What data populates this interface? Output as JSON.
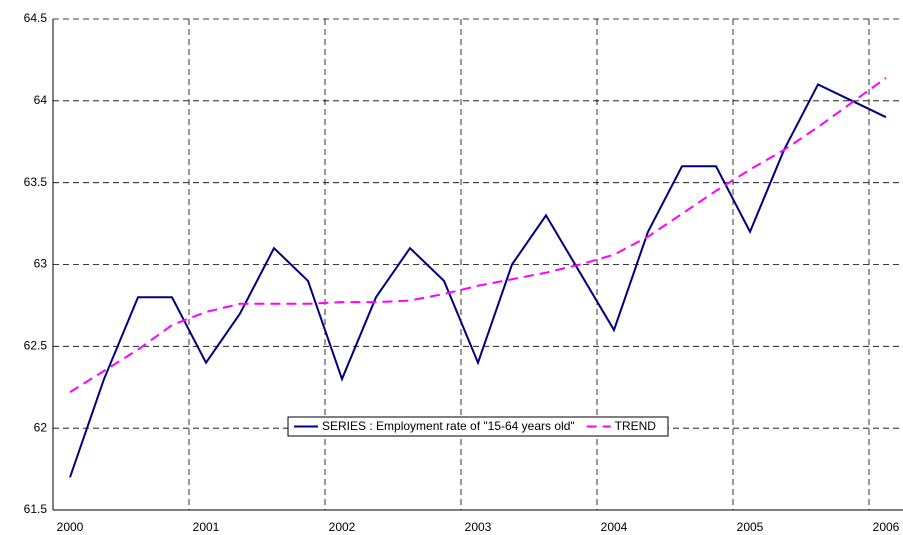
{
  "chart_data": {
    "type": "line",
    "categories": [
      "2000",
      null,
      null,
      null,
      "2001",
      null,
      null,
      null,
      "2002",
      null,
      null,
      null,
      "2003",
      null,
      null,
      null,
      "2004",
      null,
      null,
      null,
      "2005",
      null,
      null,
      null,
      "2006"
    ],
    "series": [
      {
        "name": "SERIES : Employment rate of \"15-64 years old\"",
        "color": "#000080",
        "dash": "solid",
        "values": [
          61.7,
          62.3,
          62.8,
          62.8,
          62.4,
          62.7,
          63.1,
          62.9,
          62.3,
          62.8,
          63.1,
          62.9,
          62.4,
          63.0,
          63.3,
          62.95,
          62.6,
          63.2,
          63.6,
          63.6,
          63.2,
          63.7,
          64.1,
          64.0,
          63.9
        ]
      },
      {
        "name": "TREND",
        "color": "#ff00ff",
        "dash": "dashed",
        "values": [
          62.22,
          62.35,
          62.48,
          62.63,
          62.71,
          62.76,
          62.76,
          62.76,
          62.77,
          62.77,
          62.78,
          62.82,
          62.87,
          62.91,
          62.95,
          63.0,
          63.06,
          63.17,
          63.31,
          63.45,
          63.58,
          63.7,
          63.84,
          63.99,
          64.14
        ]
      }
    ],
    "ylim": [
      61.5,
      64.5
    ],
    "yticks": [
      61.5,
      62,
      62.5,
      63,
      63.5,
      64,
      64.5
    ],
    "grid": true,
    "legend": "center"
  }
}
